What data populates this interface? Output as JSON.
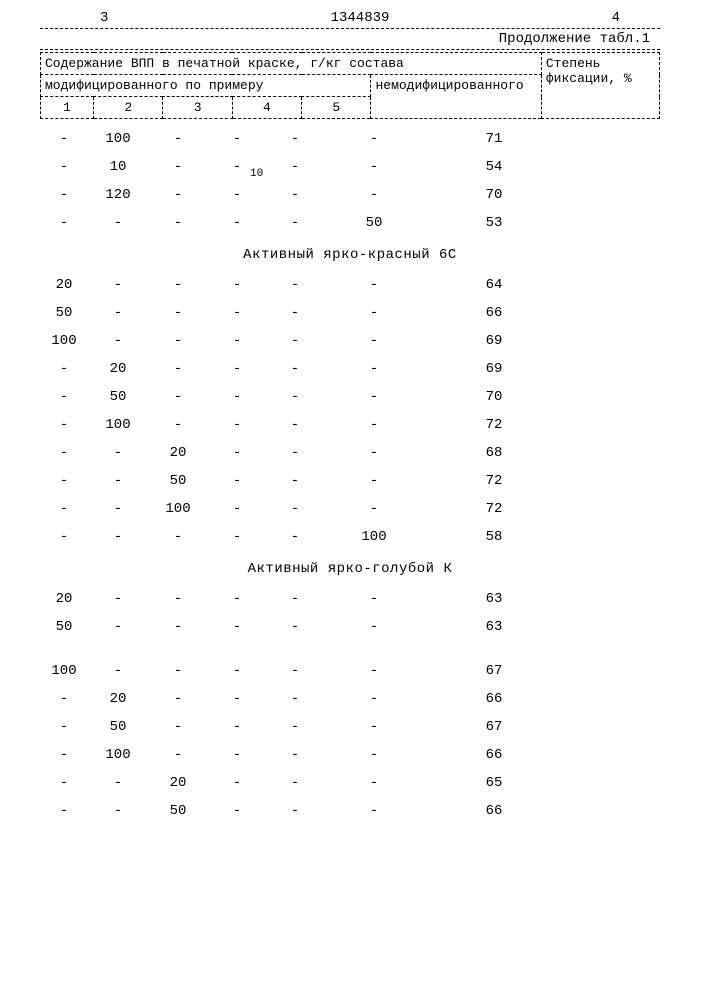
{
  "page": {
    "left_num": "3",
    "doc_num": "1344839",
    "right_num": "4",
    "continuation": "Продолжение табл.1",
    "header": {
      "main_left": "Содержание ВПП в печатной краске, г/кг состава",
      "main_right": "Степень фиксации, %",
      "sub_left": "модифицированного по примеру",
      "sub_right": "немодифицированного",
      "cols": [
        "1",
        "2",
        "3",
        "4",
        "5"
      ]
    },
    "stray_10": "10",
    "sections": [
      {
        "title": null,
        "rows": [
          {
            "c1": "-",
            "c2": "100",
            "c3": "-",
            "c4": "-",
            "c5": "-",
            "c6": "-",
            "c7": "71"
          },
          {
            "c1": "-",
            "c2": "10",
            "c3": "-",
            "c4": "-",
            "c5": "-",
            "c6": "-",
            "c7": "54"
          },
          {
            "c1": "-",
            "c2": "120",
            "c3": "-",
            "c4": "-",
            "c5": "-",
            "c6": "-",
            "c7": "70"
          },
          {
            "c1": "-",
            "c2": "-",
            "c3": "-",
            "c4": "-",
            "c5": "-",
            "c6": "50",
            "c7": "53"
          }
        ]
      },
      {
        "title": "Активный ярко-красный 6С",
        "rows": [
          {
            "c1": "20",
            "c2": "-",
            "c3": "-",
            "c4": "-",
            "c5": "-",
            "c6": "-",
            "c7": "64"
          },
          {
            "c1": "50",
            "c2": "-",
            "c3": "-",
            "c4": "-",
            "c5": "-",
            "c6": "-",
            "c7": "66"
          },
          {
            "c1": "100",
            "c2": "-",
            "c3": "-",
            "c4": "-",
            "c5": "-",
            "c6": "-",
            "c7": "69"
          },
          {
            "c1": "-",
            "c2": "20",
            "c3": "-",
            "c4": "-",
            "c5": "-",
            "c6": "-",
            "c7": "69"
          },
          {
            "c1": "-",
            "c2": "50",
            "c3": "-",
            "c4": "-",
            "c5": "-",
            "c6": "-",
            "c7": "70"
          },
          {
            "c1": "-",
            "c2": "100",
            "c3": "-",
            "c4": "-",
            "c5": "-",
            "c6": "-",
            "c7": "72"
          },
          {
            "c1": "-",
            "c2": "-",
            "c3": "20",
            "c4": "-",
            "c5": "-",
            "c6": "-",
            "c7": "68"
          },
          {
            "c1": "-",
            "c2": "-",
            "c3": "50",
            "c4": "-",
            "c5": "-",
            "c6": "-",
            "c7": "72"
          },
          {
            "c1": "-",
            "c2": "-",
            "c3": "100",
            "c4": "-",
            "c5": "-",
            "c6": "-",
            "c7": "72"
          },
          {
            "c1": "-",
            "c2": "-",
            "c3": "-",
            "c4": "-",
            "c5": "-",
            "c6": "100",
            "c7": "58"
          }
        ]
      },
      {
        "title": "Активный ярко-голубой К",
        "rows": [
          {
            "c1": "20",
            "c2": "-",
            "c3": "-",
            "c4": "-",
            "c5": "-",
            "c6": "-",
            "c7": "63"
          },
          {
            "c1": "50",
            "c2": "-",
            "c3": "-",
            "c4": "-",
            "c5": "-",
            "c6": "-",
            "c7": "63"
          },
          {
            "c1": "100",
            "c2": "-",
            "c3": "-",
            "c4": "-",
            "c5": "-",
            "c6": "-",
            "c7": "67",
            "gap": true
          },
          {
            "c1": "-",
            "c2": "20",
            "c3": "-",
            "c4": "-",
            "c5": "-",
            "c6": "-",
            "c7": "66"
          },
          {
            "c1": "-",
            "c2": "50",
            "c3": "-",
            "c4": "-",
            "c5": "-",
            "c6": "-",
            "c7": "67"
          },
          {
            "c1": "-",
            "c2": "100",
            "c3": "-",
            "c4": "-",
            "c5": "-",
            "c6": "-",
            "c7": "66"
          },
          {
            "c1": "-",
            "c2": "-",
            "c3": "20",
            "c4": "-",
            "c5": "-",
            "c6": "-",
            "c7": "65"
          },
          {
            "c1": "-",
            "c2": "-",
            "c3": "50",
            "c4": "-",
            "c5": "-",
            "c6": "-",
            "c7": "66"
          }
        ]
      }
    ]
  }
}
